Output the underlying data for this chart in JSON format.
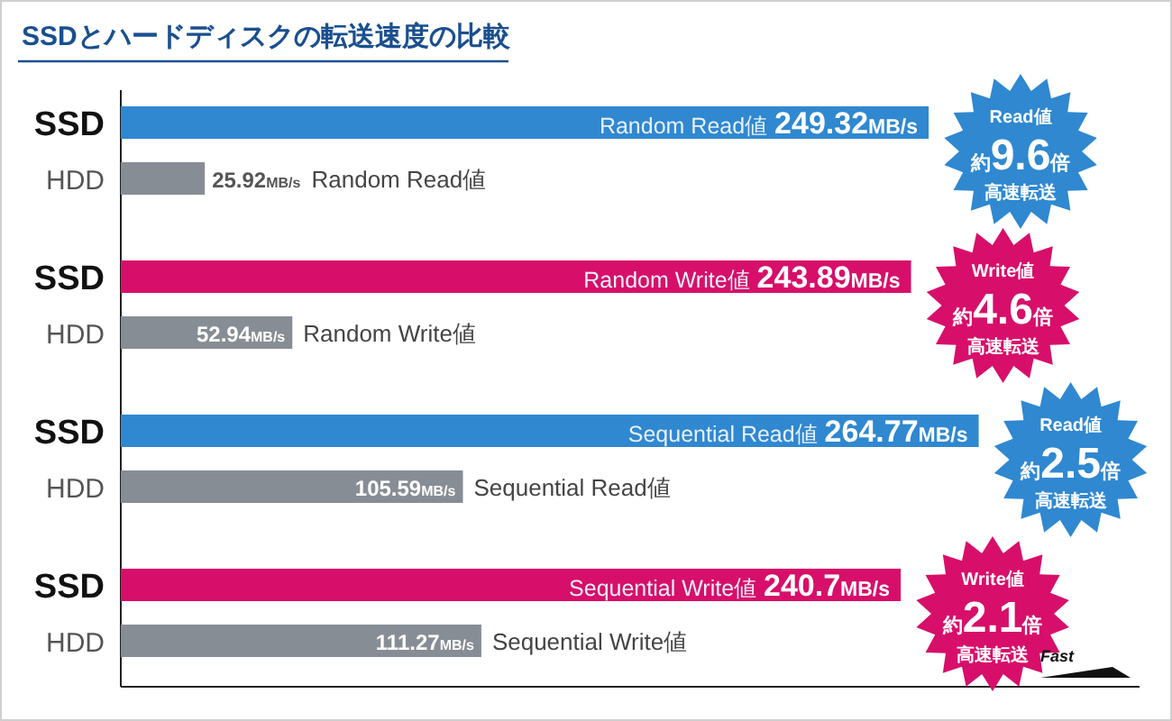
{
  "chart_data": {
    "type": "bar",
    "orientation": "horizontal",
    "title": "SSDとハードディスクの転送速度の比較",
    "categories": [
      "SSD",
      "HDD",
      "SSD",
      "HDD",
      "SSD",
      "HDD",
      "SSD",
      "HDD"
    ],
    "tick_labels": "y",
    "grid": false,
    "series": [
      {
        "name": "Random Read値",
        "values": [
          249.32,
          25.92,
          null,
          null,
          null,
          null,
          null,
          null
        ],
        "colors": [
          "#2f88d0",
          "#878d94",
          null,
          null,
          null,
          null,
          null,
          null
        ],
        "value_labels": [
          "249.32MB/s",
          "25.92MB/s",
          null,
          null,
          null,
          null,
          null,
          null
        ]
      },
      {
        "name": "Random Write値",
        "values": [
          null,
          null,
          243.89,
          52.94,
          null,
          null,
          null,
          null
        ],
        "colors": [
          null,
          null,
          "#d70f6a",
          "#878d94",
          null,
          null,
          null,
          null
        ],
        "value_labels": [
          null,
          null,
          "243.89MB/s",
          "52.94MB/s",
          null,
          null,
          null,
          null
        ]
      },
      {
        "name": "Sequential Read値",
        "values": [
          null,
          null,
          null,
          null,
          264.77,
          105.59,
          null,
          null
        ],
        "colors": [
          null,
          null,
          null,
          null,
          "#2f88d0",
          "#878d94",
          null,
          null
        ],
        "value_labels": [
          null,
          null,
          null,
          null,
          "264.77MB/s",
          "105.59MB/s",
          null,
          null
        ]
      },
      {
        "name": "Sequential Write値",
        "values": [
          null,
          null,
          null,
          null,
          null,
          null,
          240.7,
          111.27
        ],
        "colors": [
          null,
          null,
          null,
          null,
          null,
          null,
          "#d70f6a",
          "#878d94"
        ],
        "value_labels": [
          null,
          null,
          null,
          null,
          null,
          null,
          "240.7MB/s",
          "111.27MB/s"
        ]
      }
    ],
    "annotations": [
      "Read値約9.6倍高速転送",
      "Write値約4.6倍高速転送",
      "Read値約2.5倍高速転送",
      "Write値約2.1倍高速転送",
      "Fast"
    ]
  }
}
